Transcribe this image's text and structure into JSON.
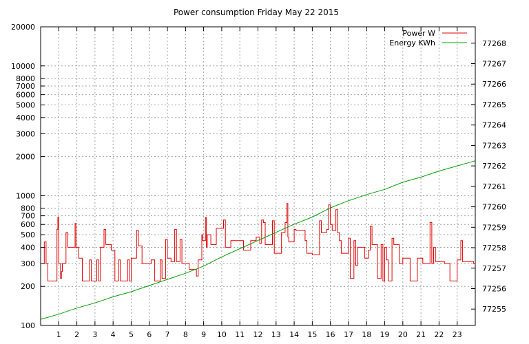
{
  "chart_data": {
    "type": "line",
    "title": "Power consumption Friday May 22 2015",
    "xlabel": "",
    "ylabel": "",
    "xlim": [
      0,
      24
    ],
    "x_ticks": [
      "1",
      "2",
      "3",
      "4",
      "5",
      "6",
      "7",
      "8",
      "9",
      "10",
      "11",
      "12",
      "13",
      "14",
      "15",
      "16",
      "17",
      "18",
      "19",
      "20",
      "21",
      "22",
      "23"
    ],
    "y_left": {
      "scale": "log",
      "lim": [
        100,
        20000
      ],
      "ticks": [
        "100",
        "200",
        "300",
        "400",
        "500",
        "600",
        "700",
        "800",
        "1000",
        "2000",
        "3000",
        "4000",
        "5000",
        "6000",
        "7000",
        "8000",
        "10000",
        "20000"
      ]
    },
    "y_right": {
      "scale": "linear",
      "lim": [
        77254.2,
        77268.8
      ],
      "ticks": [
        "77255",
        "77256",
        "77257",
        "77258",
        "77259",
        "77260",
        "77261",
        "77262",
        "77263",
        "77264",
        "77265",
        "77266",
        "77267",
        "77268"
      ]
    },
    "grid": true,
    "legend": "top-right",
    "series": [
      {
        "name": "Power W",
        "axis": "left",
        "color": "#e00000",
        "style": "step",
        "points": [
          [
            0,
            300
          ],
          [
            0.2,
            440
          ],
          [
            0.3,
            300
          ],
          [
            0.4,
            220
          ],
          [
            0.9,
            550
          ],
          [
            0.95,
            680
          ],
          [
            1.0,
            300
          ],
          [
            1.1,
            230
          ],
          [
            1.15,
            260
          ],
          [
            1.2,
            300
          ],
          [
            1.4,
            520
          ],
          [
            1.5,
            400
          ],
          [
            1.9,
            610
          ],
          [
            1.95,
            400
          ],
          [
            2.1,
            330
          ],
          [
            2.3,
            220
          ],
          [
            2.7,
            320
          ],
          [
            2.8,
            220
          ],
          [
            3.1,
            320
          ],
          [
            3.2,
            220
          ],
          [
            3.3,
            400
          ],
          [
            3.5,
            550
          ],
          [
            3.6,
            420
          ],
          [
            3.9,
            380
          ],
          [
            4.1,
            220
          ],
          [
            4.3,
            320
          ],
          [
            4.4,
            220
          ],
          [
            4.8,
            320
          ],
          [
            4.9,
            220
          ],
          [
            5.0,
            330
          ],
          [
            5.3,
            540
          ],
          [
            5.4,
            410
          ],
          [
            5.6,
            300
          ],
          [
            6.1,
            320
          ],
          [
            6.3,
            220
          ],
          [
            6.6,
            320
          ],
          [
            6.7,
            230
          ],
          [
            6.9,
            460
          ],
          [
            7.0,
            330
          ],
          [
            7.2,
            310
          ],
          [
            7.4,
            550
          ],
          [
            7.5,
            310
          ],
          [
            7.7,
            460
          ],
          [
            7.8,
            300
          ],
          [
            8.0,
            300
          ],
          [
            8.2,
            270
          ],
          [
            8.6,
            240
          ],
          [
            8.7,
            320
          ],
          [
            8.9,
            500
          ],
          [
            8.95,
            450
          ],
          [
            9.1,
            680
          ],
          [
            9.15,
            400
          ],
          [
            9.2,
            500
          ],
          [
            9.4,
            420
          ],
          [
            9.7,
            560
          ],
          [
            10.1,
            650
          ],
          [
            10.2,
            400
          ],
          [
            10.5,
            450
          ],
          [
            11.0,
            450
          ],
          [
            11.2,
            380
          ],
          [
            11.6,
            450
          ],
          [
            11.9,
            480
          ],
          [
            12.1,
            430
          ],
          [
            12.2,
            650
          ],
          [
            12.3,
            620
          ],
          [
            12.4,
            420
          ],
          [
            12.8,
            640
          ],
          [
            12.9,
            360
          ],
          [
            13.3,
            520
          ],
          [
            13.5,
            620
          ],
          [
            13.6,
            870
          ],
          [
            13.65,
            480
          ],
          [
            13.7,
            440
          ],
          [
            14.0,
            550
          ],
          [
            14.1,
            540
          ],
          [
            14.6,
            450
          ],
          [
            14.7,
            360
          ],
          [
            15.0,
            350
          ],
          [
            15.4,
            640
          ],
          [
            15.5,
            520
          ],
          [
            15.8,
            550
          ],
          [
            15.9,
            850
          ],
          [
            16.0,
            600
          ],
          [
            16.1,
            540
          ],
          [
            16.3,
            780
          ],
          [
            16.4,
            520
          ],
          [
            16.5,
            450
          ],
          [
            16.6,
            360
          ],
          [
            17.0,
            470
          ],
          [
            17.1,
            230
          ],
          [
            17.3,
            450
          ],
          [
            17.4,
            290
          ],
          [
            17.5,
            400
          ],
          [
            17.9,
            330
          ],
          [
            18.1,
            380
          ],
          [
            18.2,
            580
          ],
          [
            18.3,
            420
          ],
          [
            18.6,
            230
          ],
          [
            18.8,
            420
          ],
          [
            18.9,
            220
          ],
          [
            19.0,
            400
          ],
          [
            19.1,
            320
          ],
          [
            19.2,
            220
          ],
          [
            19.4,
            470
          ],
          [
            19.5,
            420
          ],
          [
            19.8,
            300
          ],
          [
            20.0,
            330
          ],
          [
            20.4,
            220
          ],
          [
            20.6,
            220
          ],
          [
            20.8,
            330
          ],
          [
            21.1,
            300
          ],
          [
            21.5,
            620
          ],
          [
            21.6,
            300
          ],
          [
            21.7,
            400
          ],
          [
            21.8,
            310
          ],
          [
            22.3,
            300
          ],
          [
            22.6,
            220
          ],
          [
            23.0,
            320
          ],
          [
            23.2,
            450
          ],
          [
            23.3,
            310
          ],
          [
            23.9,
            300
          ]
        ]
      },
      {
        "name": "Energy KWh",
        "axis": "right",
        "color": "#00a000",
        "style": "line",
        "points": [
          [
            0,
            77254.5
          ],
          [
            1,
            77254.75
          ],
          [
            2,
            77255.05
          ],
          [
            3,
            77255.3
          ],
          [
            4,
            77255.6
          ],
          [
            5,
            77255.85
          ],
          [
            6,
            77256.15
          ],
          [
            7,
            77256.45
          ],
          [
            8,
            77256.75
          ],
          [
            9,
            77257.1
          ],
          [
            10,
            77257.55
          ],
          [
            11,
            77257.95
          ],
          [
            12,
            77258.35
          ],
          [
            13,
            77258.75
          ],
          [
            14,
            77259.15
          ],
          [
            15,
            77259.5
          ],
          [
            16,
            77259.95
          ],
          [
            17,
            77260.3
          ],
          [
            18,
            77260.6
          ],
          [
            19,
            77260.85
          ],
          [
            20,
            77261.2
          ],
          [
            21,
            77261.45
          ],
          [
            22,
            77261.75
          ],
          [
            23,
            77262.0
          ],
          [
            24,
            77262.25
          ]
        ]
      }
    ]
  }
}
